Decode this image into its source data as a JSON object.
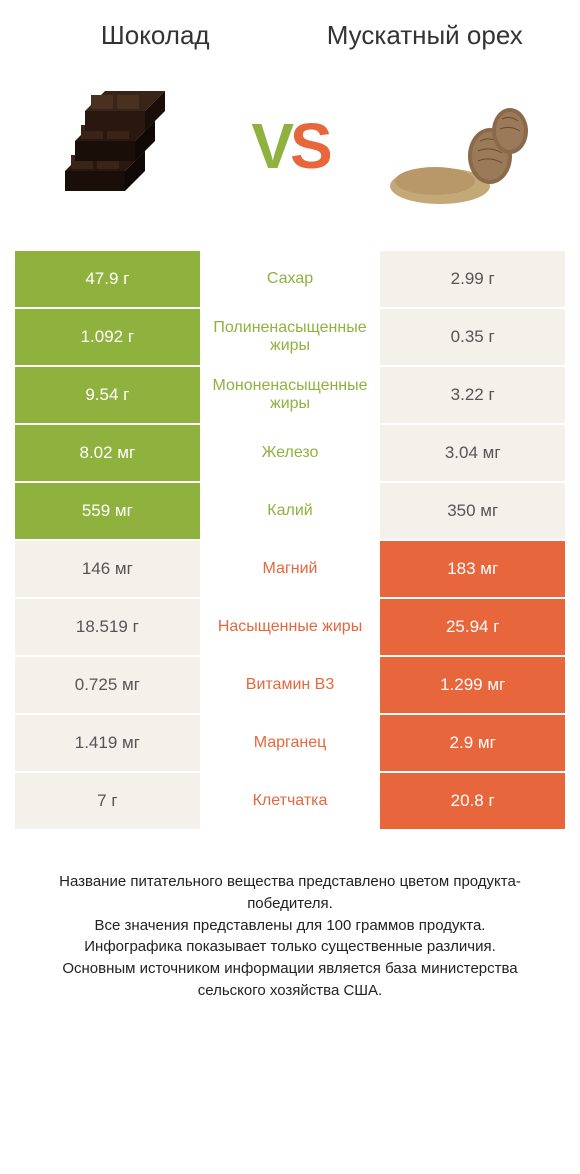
{
  "header": {
    "left_title": "Шоколад",
    "right_title": "Мускатный орех",
    "vs_v": "V",
    "vs_s": "S"
  },
  "colors": {
    "green": "#8fb23f",
    "orange": "#e8663c",
    "muted_bg": "#f4f1ea",
    "muted_text": "#555555",
    "background": "#ffffff"
  },
  "chocolate_svg": {
    "bar_color": "#3a2418",
    "highlight": "#5a3a28"
  },
  "nutmeg_svg": {
    "nut_color": "#9b7a5a",
    "powder_color": "#c4a878"
  },
  "typography": {
    "title_fontsize": 26,
    "vs_fontsize": 64,
    "cell_fontsize": 17,
    "mid_fontsize": 16,
    "footer_fontsize": 15
  },
  "rows": [
    {
      "left": "47.9 г",
      "mid": "Сахар",
      "right": "2.99 г",
      "winner": "left"
    },
    {
      "left": "1.092 г",
      "mid": "Полиненасыщенные жиры",
      "right": "0.35 г",
      "winner": "left"
    },
    {
      "left": "9.54 г",
      "mid": "Мононенасыщенные жиры",
      "right": "3.22 г",
      "winner": "left"
    },
    {
      "left": "8.02 мг",
      "mid": "Железо",
      "right": "3.04 мг",
      "winner": "left"
    },
    {
      "left": "559 мг",
      "mid": "Калий",
      "right": "350 мг",
      "winner": "left"
    },
    {
      "left": "146 мг",
      "mid": "Магний",
      "right": "183 мг",
      "winner": "right"
    },
    {
      "left": "18.519 г",
      "mid": "Насыщенные жиры",
      "right": "25.94 г",
      "winner": "right"
    },
    {
      "left": "0.725 мг",
      "mid": "Витамин B3",
      "right": "1.299 мг",
      "winner": "right"
    },
    {
      "left": "1.419 мг",
      "mid": "Марганец",
      "right": "2.9 мг",
      "winner": "right"
    },
    {
      "left": "7 г",
      "mid": "Клетчатка",
      "right": "20.8 г",
      "winner": "right"
    }
  ],
  "footer": {
    "line1": "Название питательного вещества представлено цветом продукта-победителя.",
    "line2": "Все значения представлены для 100 граммов продукта.",
    "line3": "Инфографика показывает только существенные различия.",
    "line4": "Основным источником информации является база министерства сельского хозяйства США."
  }
}
